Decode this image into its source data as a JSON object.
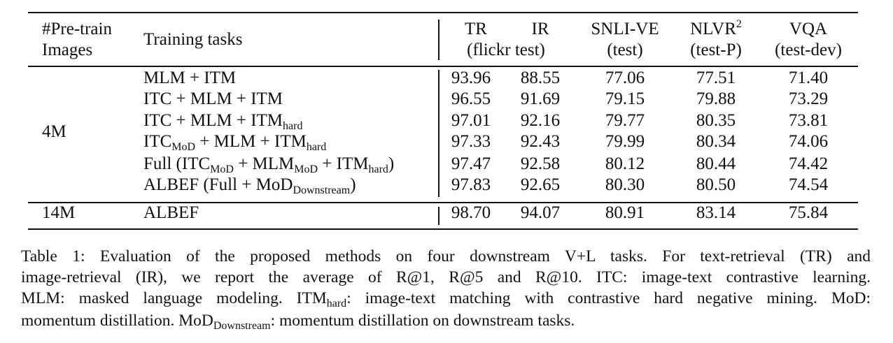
{
  "table": {
    "header": {
      "pretrain": [
        "#Pre-train",
        "Images"
      ],
      "tasks": "Training tasks",
      "tr": "TR",
      "ir": "IR",
      "retrieval_test": "(flickr test)",
      "snli": [
        "SNLI-VE",
        "(test)"
      ],
      "nlvr": [
        {
          "text": "NLVR"
        },
        {
          "sup": "2"
        }
      ],
      "nlvr_test": "(test-P)",
      "vqa": [
        "VQA",
        "(test-dev)"
      ]
    },
    "groups": [
      {
        "images": "4M",
        "rows": [
          {
            "task": [
              {
                "text": "MLM + ITM"
              }
            ],
            "scores": [
              "93.96",
              "88.55",
              "77.06",
              "77.51",
              "71.40"
            ]
          },
          {
            "task": [
              {
                "text": "ITC + MLM + ITM"
              }
            ],
            "scores": [
              "96.55",
              "91.69",
              "79.15",
              "79.88",
              "73.29"
            ]
          },
          {
            "task": [
              {
                "text": "ITC + MLM + ITM"
              },
              {
                "sub": "hard"
              }
            ],
            "scores": [
              "97.01",
              "92.16",
              "79.77",
              "80.35",
              "73.81"
            ]
          },
          {
            "task": [
              {
                "text": "ITC"
              },
              {
                "sub": "MoD"
              },
              {
                "text": " + MLM + ITM"
              },
              {
                "sub": "hard"
              }
            ],
            "scores": [
              "97.33",
              "92.43",
              "79.99",
              "80.34",
              "74.06"
            ]
          },
          {
            "task": [
              {
                "text": "Full (ITC"
              },
              {
                "sub": "MoD"
              },
              {
                "text": " + MLM"
              },
              {
                "sub": "MoD"
              },
              {
                "text": " + ITM"
              },
              {
                "sub": "hard"
              },
              {
                "text": ")"
              }
            ],
            "scores": [
              "97.47",
              "92.58",
              "80.12",
              "80.44",
              "74.42"
            ]
          },
          {
            "task": [
              {
                "text": "ALBEF (Full + MoD"
              },
              {
                "sub": "Downstream"
              },
              {
                "text": ")"
              }
            ],
            "scores": [
              "97.83",
              "92.65",
              "80.30",
              "80.50",
              "74.54"
            ]
          }
        ]
      },
      {
        "images": "14M",
        "rows": [
          {
            "task": [
              {
                "text": "ALBEF"
              }
            ],
            "scores": [
              "98.70",
              "94.07",
              "80.91",
              "83.14",
              "75.84"
            ]
          }
        ]
      }
    ]
  },
  "caption": [
    [
      {
        "text": "Table 1:  Evaluation of the proposed methods on four downstream V+L tasks.  For text-retrieval (TR) and"
      }
    ],
    [
      {
        "text": "image-retrieval (IR), we report the average of R@1, R@5 and R@10. ITC: image-text contrastive learning."
      }
    ],
    [
      {
        "text": "MLM: masked language modeling. ITM"
      },
      {
        "sub": "hard"
      },
      {
        "text": ": image-text matching with contrastive hard negative mining. MoD:"
      }
    ],
    [
      {
        "text": "momentum distillation. MoD"
      },
      {
        "sub": "Downstream"
      },
      {
        "text": ": momentum distillation on downstream tasks."
      }
    ]
  ]
}
